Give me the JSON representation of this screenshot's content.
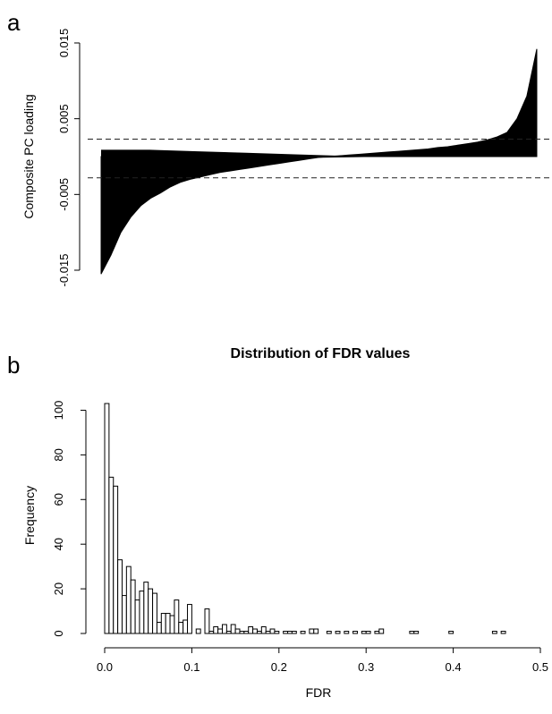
{
  "chart_data": [
    {
      "panel": "a",
      "type": "area",
      "title": "",
      "xlabel": "",
      "ylabel": "Composite PC loading",
      "ylim": [
        -0.015,
        0.015
      ],
      "y_ticks": [
        -0.015,
        -0.005,
        0.005,
        0.015
      ],
      "y_tick_labels": [
        "-0.015",
        "-0.005",
        "0.005",
        "0.015"
      ],
      "x_axis_shown": false,
      "grid": false,
      "thresholds": [
        0.0023,
        -0.0028
      ],
      "series": [
        {
          "values": [
            -0.0155,
            -0.013,
            -0.01,
            -0.008,
            -0.0065,
            -0.0055,
            -0.0048,
            -0.004,
            -0.0034,
            -0.003,
            -0.0027,
            -0.0024,
            -0.0021,
            -0.0019,
            -0.0017,
            -0.0015,
            -0.0013,
            -0.0011,
            -0.0009,
            -0.0007,
            -0.0005,
            -0.0003,
            -0.0001,
            0.0,
            0.0001,
            0.0002,
            0.0003,
            0.0004,
            0.0005,
            0.0006,
            0.0007,
            0.0008,
            0.0009,
            0.001,
            0.0012,
            0.0013,
            0.0015,
            0.0017,
            0.0019,
            0.0022,
            0.0026,
            0.0032,
            0.005,
            0.008,
            0.0142
          ]
        }
      ]
    },
    {
      "panel": "b",
      "type": "bar",
      "title": "Distribution of FDR values",
      "xlabel": "FDR",
      "ylabel": "Frequency",
      "xlim": [
        0,
        0.5
      ],
      "ylim": [
        0,
        103
      ],
      "x_ticks": [
        0.0,
        0.1,
        0.2,
        0.3,
        0.4,
        0.5
      ],
      "x_tick_labels": [
        "0.0",
        "0.1",
        "0.2",
        "0.3",
        "0.4",
        "0.5"
      ],
      "y_ticks": [
        0,
        20,
        40,
        60,
        80,
        100
      ],
      "y_tick_labels": [
        "0",
        "20",
        "40",
        "60",
        "80",
        "100"
      ],
      "grid": false,
      "bin_width": 0.005,
      "values": [
        103,
        70,
        66,
        33,
        17,
        30,
        24,
        15,
        19,
        23,
        20,
        18,
        5,
        9,
        9,
        8,
        15,
        5,
        6,
        13,
        0,
        2,
        0,
        11,
        1,
        3,
        2,
        4,
        1,
        4,
        2,
        1,
        1,
        3,
        2,
        1,
        3,
        1,
        2,
        1,
        0,
        1,
        1,
        1,
        0,
        1,
        0,
        2,
        2,
        0,
        0,
        1,
        0,
        1,
        0,
        1,
        0,
        1,
        0,
        1,
        1,
        0,
        1,
        2,
        0,
        0,
        0,
        0,
        0,
        0,
        1,
        1,
        0,
        0,
        0,
        0,
        0,
        0,
        0,
        1,
        0,
        0,
        0,
        0,
        0,
        0,
        0,
        0,
        0,
        1,
        0,
        1,
        0,
        0,
        0,
        0,
        0,
        0,
        0,
        0
      ]
    }
  ],
  "labels": {
    "panel_a": "a",
    "panel_b": "b"
  }
}
